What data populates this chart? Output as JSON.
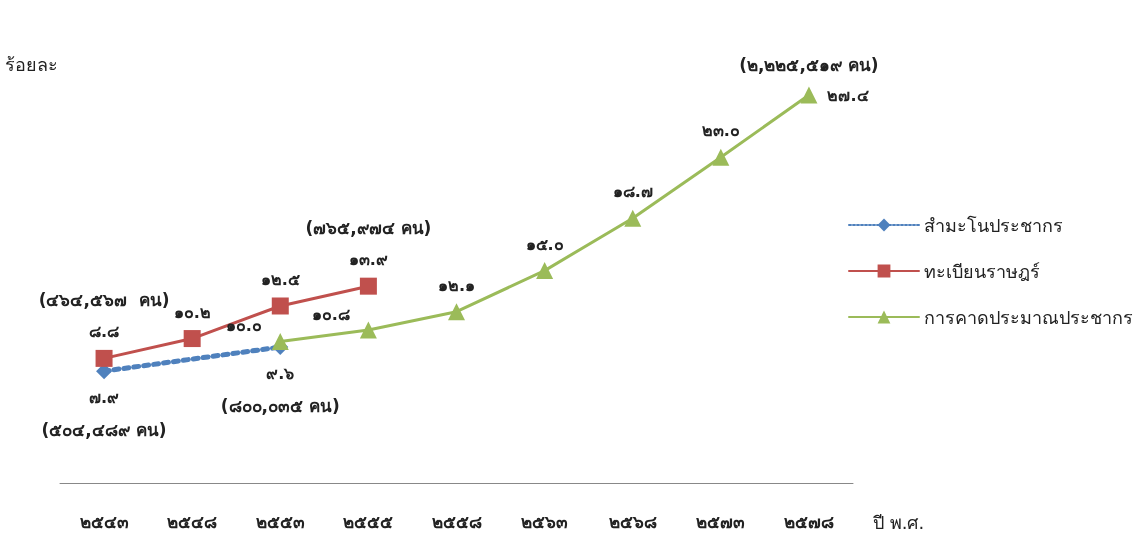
{
  "chart_data": {
    "type": "line",
    "ylabel": "ร้อยละ",
    "xlabel": "ปี พ.ศ.",
    "categories": [
      "๒๕๔๓",
      "๒๕๔๘",
      "๒๕๕๓",
      "๒๕๕๕",
      "๒๕๕๘",
      "๒๕๖๓",
      "๒๕๖๘",
      "๒๕๗๓",
      "๒๕๗๘"
    ],
    "series": [
      {
        "name": "สำมะโนประชากร",
        "color": "#4f81bd",
        "marker": "diamond",
        "line_style": "dotted",
        "values": [
          7.9,
          null,
          9.6,
          null,
          null,
          null,
          null,
          null,
          null
        ],
        "value_labels": [
          "๗.๙",
          null,
          "๙.๖",
          null,
          null,
          null,
          null,
          null,
          null
        ]
      },
      {
        "name": "ทะเบียนราษฎร์",
        "color": "#c0504d",
        "marker": "square",
        "line_style": "solid",
        "values": [
          8.8,
          10.2,
          12.5,
          13.9,
          null,
          null,
          null,
          null,
          null
        ],
        "value_labels": [
          "๘.๘",
          "๑๐.๒",
          "๑๒.๕",
          "๑๓.๙",
          null,
          null,
          null,
          null,
          null
        ]
      },
      {
        "name": "การคาดประมาณประชากร",
        "color": "#9bbb59",
        "marker": "triangle",
        "line_style": "solid",
        "values": [
          null,
          null,
          10.0,
          10.8,
          12.1,
          15.0,
          18.7,
          23.0,
          27.4
        ],
        "value_labels": [
          null,
          null,
          "๑๐.๐",
          "๑๐.๘",
          "๑๒.๑",
          "๑๕.๐",
          "๑๘.๗",
          "๒๓.๐",
          "๒๗.๔"
        ]
      }
    ],
    "annotations": [
      {
        "text": "(๕๐๔,๔๘๙ คน)",
        "x": "๒๕๔๓",
        "y": 7.9
      },
      {
        "text": "(๔๖๔,๕๖๗  คน)",
        "x": "๒๕๔๓",
        "y": 8.8
      },
      {
        "text": "(๘๐๐,๐๓๕ คน)",
        "x": "๒๕๕๓",
        "y": 9.6
      },
      {
        "text": "(๗๖๕,๙๗๔ คน)",
        "x": "๒๕๕๕",
        "y": 13.9
      },
      {
        "text": "(๒,๒๒๕,๕๑๙ คน)",
        "x": "๒๕๗๘",
        "y": 27.4
      }
    ],
    "legend": "right",
    "tick_labels": "x",
    "grid": false
  }
}
